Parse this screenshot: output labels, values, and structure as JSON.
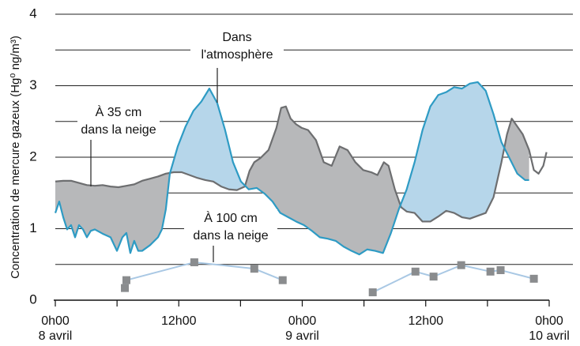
{
  "chart_data": {
    "type": "line",
    "ylabel": "Concentration de mercure gazeux (Hg⁰ ng/m³)",
    "xlim": [
      0,
      48
    ],
    "xticks": [
      {
        "value": 0,
        "label": "0h00",
        "date": "8 avril"
      },
      {
        "value": 12,
        "label": "12h00"
      },
      {
        "value": 24,
        "label": "0h00",
        "date": "9 avril"
      },
      {
        "value": 36,
        "label": "12h00"
      },
      {
        "value": 48,
        "label": "0h00",
        "date": "10 avril"
      }
    ],
    "minor_xticks": [
      6,
      18,
      30,
      42
    ],
    "ylim": [
      0,
      4
    ],
    "yticks": [
      0,
      1,
      2,
      3,
      4
    ],
    "minor_yticks": [
      0.5,
      1.5,
      2.5,
      3.5
    ],
    "grid": true,
    "series": [
      {
        "label": [
          "Dans",
          "l'atmosphère"
        ],
        "color": "#6d6e70",
        "fill": "#b7b8ba",
        "x": [
          0,
          0.77,
          1.53,
          2.3,
          3.07,
          3.84,
          4.6,
          5.37,
          6.14,
          6.91,
          7.67,
          8.44,
          9.21,
          9.98,
          10.74,
          11.51,
          12.28,
          13.05,
          13.81,
          14.58,
          15.35,
          16.12,
          16.88,
          17.65,
          18.42,
          18.88,
          19.34,
          19.95,
          20.72,
          21.49,
          21.95,
          22.41,
          22.87,
          23.41,
          23.95,
          24.56,
          25.33,
          26.09,
          26.86,
          27.63,
          28.4,
          29.16,
          29.93,
          30.7,
          31.31,
          31.93,
          32.39,
          33.0,
          33.61,
          34.15,
          34.92,
          35.69,
          36.45,
          37.22,
          37.99,
          38.76,
          39.52,
          40.29,
          41.06,
          41.83,
          42.59,
          43.36,
          43.9,
          44.36,
          44.9,
          45.43,
          46.05,
          46.51,
          46.97,
          47.43,
          47.74
        ],
        "values": [
          1.66,
          1.67,
          1.67,
          1.64,
          1.61,
          1.6,
          1.61,
          1.59,
          1.58,
          1.6,
          1.62,
          1.67,
          1.7,
          1.73,
          1.77,
          1.79,
          1.79,
          1.75,
          1.71,
          1.68,
          1.66,
          1.59,
          1.55,
          1.54,
          1.59,
          1.81,
          1.93,
          1.99,
          2.1,
          2.41,
          2.69,
          2.71,
          2.54,
          2.46,
          2.41,
          2.38,
          2.24,
          1.93,
          1.88,
          2.15,
          2.1,
          1.93,
          1.82,
          1.79,
          1.75,
          1.93,
          1.88,
          1.55,
          1.3,
          1.24,
          1.22,
          1.1,
          1.1,
          1.17,
          1.25,
          1.22,
          1.16,
          1.14,
          1.18,
          1.22,
          1.44,
          1.93,
          2.32,
          2.54,
          2.43,
          2.32,
          2.1,
          1.82,
          1.77,
          1.88,
          2.07
        ]
      },
      {
        "label": [
          "À 35 cm",
          "dans la neige"
        ],
        "color": "#2e9bc4",
        "fill": "#b6d6ea",
        "x": [
          0,
          0.38,
          0.77,
          1.15,
          1.53,
          1.92,
          2.3,
          2.69,
          3.07,
          3.45,
          3.84,
          4.6,
          5.37,
          5.99,
          6.52,
          6.91,
          7.29,
          7.67,
          8.06,
          8.44,
          9.21,
          9.98,
          10.36,
          10.74,
          11.13,
          11.9,
          12.66,
          13.43,
          14.2,
          14.97,
          15.73,
          16.5,
          17.27,
          18.04,
          18.8,
          19.57,
          20.34,
          21.11,
          21.87,
          22.64,
          23.41,
          24.17,
          24.94,
          25.71,
          26.48,
          27.25,
          28.01,
          28.78,
          29.55,
          30.31,
          31.08,
          31.85,
          32.62,
          33.38,
          34.15,
          34.92,
          35.69,
          36.45,
          37.22,
          37.99,
          38.76,
          39.52,
          40.29,
          41.06,
          41.83,
          42.59,
          43.36,
          44.13,
          44.9,
          45.66,
          46.05
        ],
        "values": [
          1.22,
          1.38,
          1.16,
          0.99,
          1.05,
          0.88,
          1.05,
          0.99,
          0.88,
          0.97,
          0.99,
          0.93,
          0.88,
          0.69,
          0.88,
          0.94,
          0.66,
          0.83,
          0.69,
          0.69,
          0.77,
          0.88,
          0.99,
          1.27,
          1.77,
          2.15,
          2.43,
          2.65,
          2.78,
          2.96,
          2.76,
          2.38,
          1.93,
          1.66,
          1.55,
          1.57,
          1.49,
          1.38,
          1.22,
          1.16,
          1.1,
          1.05,
          0.97,
          0.88,
          0.86,
          0.83,
          0.75,
          0.69,
          0.64,
          0.71,
          0.69,
          0.66,
          0.94,
          1.27,
          1.55,
          1.93,
          2.38,
          2.71,
          2.87,
          2.91,
          2.98,
          2.96,
          3.03,
          3.05,
          2.93,
          2.6,
          2.21,
          1.99,
          1.77,
          1.68,
          1.68
        ]
      },
      {
        "label": [
          "À 100 cm",
          "dans la neige"
        ],
        "color": "#a9c8e4",
        "marker_color": "#8a8c8e",
        "x": [
          6.76,
          6.91,
          13.51,
          19.34,
          22.1,
          null,
          30.85,
          35.0,
          36.76,
          39.45,
          42.29,
          43.28,
          46.51
        ],
        "values": [
          0.17,
          0.28,
          0.53,
          0.44,
          0.28,
          null,
          0.11,
          0.4,
          0.33,
          0.49,
          0.4,
          0.42,
          0.3
        ]
      }
    ]
  }
}
